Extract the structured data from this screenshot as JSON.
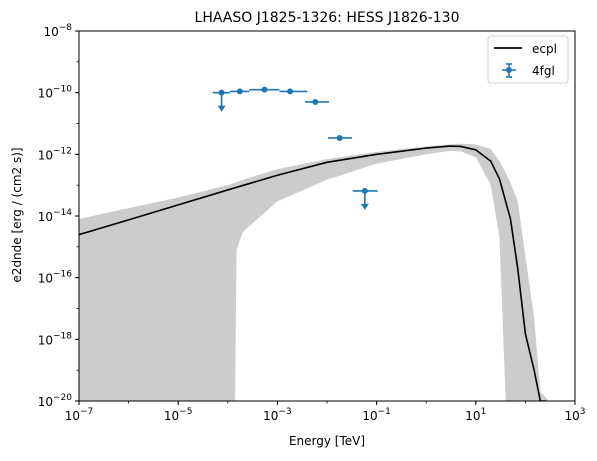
{
  "chart_data": {
    "type": "line",
    "title": "LHAASO J1825-1326: HESS J1826-130",
    "xlabel": "Energy [TeV]",
    "ylabel": "e2dnde [erg / (cm2 s)]",
    "xscale": "log",
    "yscale": "log",
    "xlim": [
      1e-07,
      1000
    ],
    "ylim": [
      1e-20,
      1e-08
    ],
    "grid": false,
    "legend_position": "top-right",
    "x_ticks": [
      {
        "value": 1e-07,
        "base": "10",
        "exp": "−7"
      },
      {
        "value": 1e-05,
        "base": "10",
        "exp": "−5"
      },
      {
        "value": 0.001,
        "base": "10",
        "exp": "−3"
      },
      {
        "value": 0.1,
        "base": "10",
        "exp": "−1"
      },
      {
        "value": 10,
        "base": "10",
        "exp": "1"
      },
      {
        "value": 1000,
        "base": "10",
        "exp": "3"
      }
    ],
    "y_ticks": [
      {
        "value": 1e-20,
        "base": "10",
        "exp": "−20"
      },
      {
        "value": 1e-18,
        "base": "10",
        "exp": "−18"
      },
      {
        "value": 1e-16,
        "base": "10",
        "exp": "−16"
      },
      {
        "value": 1e-14,
        "base": "10",
        "exp": "−14"
      },
      {
        "value": 1e-12,
        "base": "10",
        "exp": "−12"
      },
      {
        "value": 1e-10,
        "base": "10",
        "exp": "−10"
      },
      {
        "value": 1e-08,
        "base": "10",
        "exp": "−8"
      }
    ],
    "series": [
      {
        "name": "ecpl",
        "kind": "line",
        "color": "#000000",
        "x": [
          1e-07,
          1e-06,
          1e-05,
          0.0001,
          0.001,
          0.01,
          0.1,
          1,
          3,
          5,
          10,
          20,
          30,
          50,
          70,
          100,
          150,
          200,
          260
        ],
        "y": [
          2.5e-15,
          7.5e-15,
          2.3e-14,
          7e-14,
          2.1e-13,
          5.5e-13,
          1e-12,
          1.6e-12,
          1.85e-12,
          1.8e-12,
          1.4e-12,
          6e-13,
          1.6e-13,
          8e-15,
          2e-16,
          1.5e-18,
          1e-19,
          1e-20,
          1e-20
        ]
      },
      {
        "name": "4fgl",
        "kind": "errorbar",
        "color": "#1f77b4",
        "points": [
          {
            "x": 7.5e-05,
            "y": 1e-10,
            "xlo": 5e-05,
            "xhi": 0.00011,
            "upper_limit": true
          },
          {
            "x": 0.000175,
            "y": 1.1e-10,
            "xlo": 0.00011,
            "xhi": 0.00027,
            "upper_limit": false
          },
          {
            "x": 0.00055,
            "y": 1.25e-10,
            "xlo": 0.00027,
            "xhi": 0.0011,
            "upper_limit": false
          },
          {
            "x": 0.0018,
            "y": 1.1e-10,
            "xlo": 0.0011,
            "xhi": 0.004,
            "upper_limit": false
          },
          {
            "x": 0.0058,
            "y": 5e-11,
            "xlo": 0.0036,
            "xhi": 0.011,
            "upper_limit": false
          },
          {
            "x": 0.018,
            "y": 3.4e-12,
            "xlo": 0.0105,
            "xhi": 0.032,
            "upper_limit": false
          },
          {
            "x": 0.058,
            "y": 6.5e-14,
            "xlo": 0.033,
            "xhi": 0.105,
            "upper_limit": true
          }
        ]
      }
    ],
    "band": {
      "color": "#cccccc",
      "x": [
        1e-07,
        1e-06,
        1e-05,
        0.0001,
        0.00014,
        0.00015,
        0.0002,
        0.001,
        0.01,
        0.1,
        1,
        3,
        5,
        10,
        20,
        30,
        40,
        50,
        70,
        100,
        150,
        200,
        300
      ],
      "upper": [
        8e-15,
        1.8e-14,
        4e-14,
        1e-13,
        1.2e-13,
        1.25e-13,
        1.5e-13,
        3.3e-13,
        7e-13,
        1.2e-12,
        1.8e-12,
        2.1e-12,
        2.2e-12,
        2.1e-12,
        1.5e-12,
        6e-13,
        2.5e-13,
        1.2e-13,
        3e-14,
        5e-16,
        5e-18,
        2e-20,
        1e-20
      ],
      "lower": [
        1e-20,
        1e-20,
        1e-20,
        1e-20,
        1e-20,
        8e-16,
        3e-15,
        3e-14,
        1.5e-13,
        5e-13,
        1e-12,
        1.3e-12,
        1.25e-12,
        8e-13,
        1e-13,
        2e-15,
        1e-20,
        1e-20,
        1e-20,
        1e-20,
        1e-20,
        1e-20,
        1e-20
      ]
    }
  }
}
